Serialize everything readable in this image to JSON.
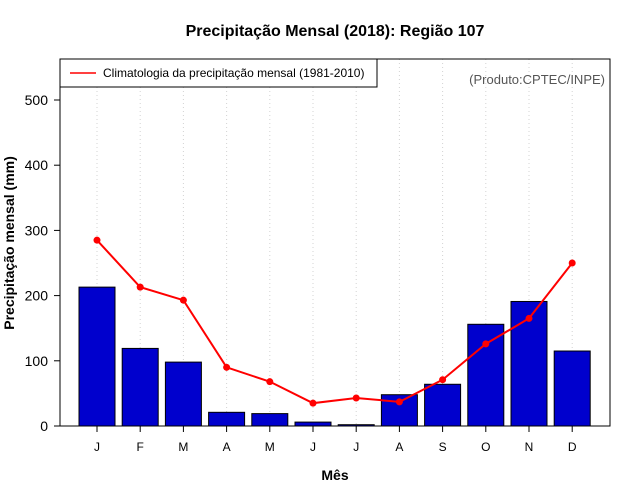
{
  "chart_data": {
    "type": "bar",
    "title": "Precipitação Mensal (2018): Região 107",
    "xlabel": "Mês",
    "ylabel": "Precipitação mensal (mm)",
    "categories": [
      "J",
      "F",
      "M",
      "A",
      "M",
      "J",
      "J",
      "A",
      "S",
      "O",
      "N",
      "D"
    ],
    "series": [
      {
        "name": "Precipitação mensal 2018",
        "kind": "bar",
        "color": "#0000cd",
        "values": [
          213,
          119,
          98,
          21,
          19,
          6,
          2,
          48,
          64,
          156,
          191,
          115
        ]
      },
      {
        "name": "Climatologia da precipitação mensal (1981-2010)",
        "kind": "line",
        "color": "#ff0000",
        "values": [
          285,
          213,
          193,
          90,
          68,
          35,
          43,
          37,
          71,
          126,
          165,
          250
        ]
      }
    ],
    "ylim": [
      0,
      550
    ],
    "yticks": [
      0,
      100,
      200,
      300,
      400,
      500
    ],
    "legend": {
      "position": "top-left",
      "entries": [
        "Climatologia da precipitação mensal (1981-2010)"
      ]
    },
    "annotations": [
      "(Produto:CPTEC/INPE)"
    ],
    "grid": "vertical dotted"
  }
}
